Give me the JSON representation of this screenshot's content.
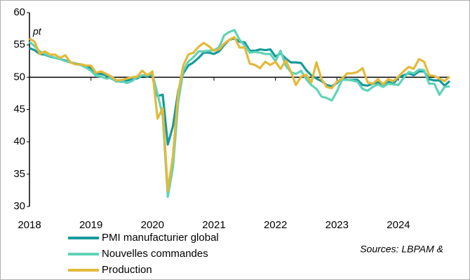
{
  "chart_data": {
    "type": "line",
    "unit_label": "pt",
    "source": "Sources: LBPAM &",
    "x": [
      2018,
      2018.083,
      2018.167,
      2018.25,
      2018.333,
      2018.417,
      2018.5,
      2018.583,
      2018.667,
      2018.75,
      2018.833,
      2018.917,
      2019,
      2019.083,
      2019.167,
      2019.25,
      2019.333,
      2019.417,
      2019.5,
      2019.583,
      2019.667,
      2019.75,
      2019.833,
      2019.917,
      2020,
      2020.083,
      2020.167,
      2020.25,
      2020.333,
      2020.417,
      2020.5,
      2020.583,
      2020.667,
      2020.75,
      2020.833,
      2020.917,
      2021,
      2021.083,
      2021.167,
      2021.25,
      2021.333,
      2021.417,
      2021.5,
      2021.583,
      2021.667,
      2021.75,
      2021.833,
      2021.917,
      2022,
      2022.083,
      2022.167,
      2022.25,
      2022.333,
      2022.417,
      2022.5,
      2022.583,
      2022.667,
      2022.75,
      2022.833,
      2022.917,
      2023,
      2023.083,
      2023.167,
      2023.25,
      2023.333,
      2023.417,
      2023.5,
      2023.583,
      2023.667,
      2023.75,
      2023.833,
      2023.917,
      2024,
      2024.083,
      2024.167,
      2024.25,
      2024.333,
      2024.417,
      2024.5,
      2024.583,
      2024.667,
      2024.75,
      2024.833
    ],
    "series": [
      {
        "name": "PMI manufacturier global",
        "color": "#169b9b",
        "values": [
          54.5,
          54.2,
          53.6,
          53.5,
          53.2,
          53.0,
          52.8,
          52.6,
          52.3,
          52.1,
          52.0,
          51.8,
          51.4,
          50.6,
          50.5,
          50.3,
          49.8,
          49.4,
          49.3,
          49.5,
          49.7,
          49.8,
          50.3,
          50.1,
          50.4,
          47.1,
          47.3,
          39.6,
          42.4,
          47.8,
          50.6,
          51.8,
          52.3,
          53.0,
          53.8,
          53.8,
          53.6,
          54.0,
          55.0,
          55.8,
          56.0,
          55.5,
          55.4,
          54.1,
          54.1,
          54.3,
          54.2,
          54.3,
          53.2,
          53.7,
          52.9,
          52.3,
          52.3,
          52.2,
          51.1,
          50.3,
          49.8,
          49.4,
          48.8,
          48.6,
          49.1,
          49.9,
          49.6,
          49.6,
          49.6,
          48.8,
          48.7,
          49.0,
          49.2,
          48.8,
          49.3,
          49.0,
          50.0,
          50.3,
          50.6,
          50.3,
          50.9,
          50.9,
          49.7,
          49.5,
          49.5,
          48.7,
          49.4
        ]
      },
      {
        "name": "Nouvelles commandes",
        "color": "#5fd3b8",
        "values": [
          55.5,
          54.8,
          54.0,
          53.6,
          53.3,
          53.0,
          52.8,
          52.5,
          52.3,
          52.0,
          51.9,
          51.5,
          51.0,
          50.2,
          50.1,
          49.8,
          49.9,
          49.3,
          49.4,
          49.1,
          49.4,
          50.0,
          50.3,
          50.3,
          50.5,
          47.4,
          44.0,
          31.5,
          36.0,
          46.0,
          51.0,
          52.4,
          53.1,
          54.0,
          54.0,
          54.1,
          54.2,
          54.6,
          56.5,
          57.0,
          57.3,
          55.8,
          54.9,
          53.8,
          53.9,
          53.8,
          53.6,
          53.6,
          52.5,
          54.1,
          51.8,
          50.8,
          50.5,
          51.0,
          49.7,
          48.8,
          48.2,
          47.0,
          46.8,
          46.4,
          47.8,
          49.6,
          49.6,
          49.5,
          49.3,
          48.2,
          47.9,
          48.5,
          48.9,
          48.5,
          49.0,
          48.9,
          48.8,
          49.9,
          50.8,
          50.6,
          51.2,
          51.1,
          49.0,
          49.0,
          47.3,
          48.5,
          48.6
        ]
      },
      {
        "name": "Production",
        "color": "#e3b93a",
        "values": [
          56.0,
          55.5,
          53.6,
          54.0,
          53.5,
          53.5,
          53.0,
          53.4,
          52.3,
          52.0,
          52.0,
          51.8,
          51.8,
          50.7,
          50.9,
          50.5,
          50.1,
          49.5,
          49.6,
          49.8,
          50.0,
          50.1,
          51.0,
          50.3,
          50.9,
          43.6,
          45.2,
          32.4,
          37.8,
          47.5,
          51.8,
          53.5,
          53.8,
          54.7,
          55.3,
          54.8,
          54.1,
          54.3,
          55.2,
          55.8,
          56.2,
          54.6,
          54.6,
          52.1,
          51.9,
          51.4,
          52.4,
          51.9,
          52.4,
          51.3,
          52.6,
          50.9,
          48.8,
          50.1,
          50.4,
          49.2,
          52.3,
          49.7,
          48.5,
          48.3,
          49.3,
          49.8,
          50.6,
          50.6,
          50.8,
          51.4,
          49.2,
          49.0,
          49.7,
          48.9,
          49.7,
          49.4,
          50.1,
          50.9,
          51.6,
          51.3,
          52.8,
          52.4,
          50.3,
          50.2,
          49.8,
          49.4,
          50.1
        ]
      }
    ],
    "xlim": [
      2018,
      2024.833
    ],
    "xticks": [
      2018,
      2019,
      2020,
      2021,
      2022,
      2023,
      2024
    ],
    "ylim": [
      30,
      60
    ],
    "yticks": [
      30,
      35,
      40,
      45,
      50,
      55,
      60
    ],
    "xaxis_crosses": 50,
    "grid": false
  }
}
